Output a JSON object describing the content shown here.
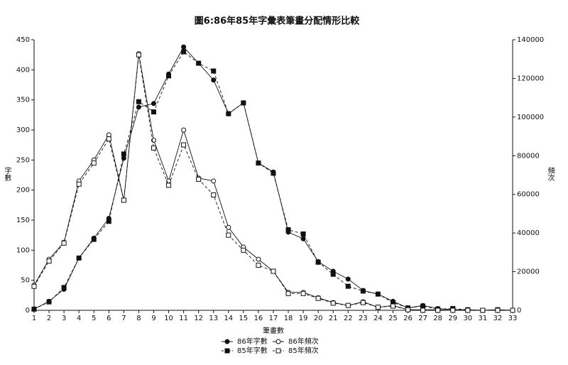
{
  "chart_data": {
    "type": "line",
    "title": "圖6:86年85年字彙表筆畫分配情形比較",
    "x_label": "筆畫數",
    "y_label": "字數",
    "y2_label": "頻次",
    "x": [
      1,
      2,
      3,
      4,
      5,
      6,
      7,
      8,
      9,
      10,
      11,
      12,
      13,
      14,
      15,
      16,
      17,
      18,
      19,
      20,
      21,
      22,
      23,
      24,
      25,
      26,
      27,
      28,
      29,
      30,
      31,
      32,
      33
    ],
    "xlim": [
      1,
      33
    ],
    "xticks": [
      1,
      2,
      3,
      4,
      5,
      6,
      7,
      8,
      9,
      10,
      11,
      12,
      13,
      14,
      15,
      16,
      17,
      18,
      19,
      20,
      21,
      22,
      23,
      24,
      25,
      26,
      27,
      28,
      29,
      30,
      31,
      32,
      33
    ],
    "ylim": [
      0,
      450
    ],
    "yticks": [
      0,
      50,
      100,
      150,
      200,
      250,
      300,
      350,
      400,
      450
    ],
    "y2lim": [
      0,
      140000
    ],
    "y2ticks": [
      0,
      20000,
      40000,
      60000,
      80000,
      100000,
      120000,
      140000
    ],
    "grid": false,
    "series": [
      {
        "name": "86年字數",
        "color": "#111111",
        "dash": "solid",
        "marker": "circle",
        "filled": true,
        "values": [
          2,
          15,
          35,
          87,
          120,
          153,
          253,
          338,
          344,
          393,
          438,
          411,
          383,
          327,
          345,
          245,
          230,
          130,
          119,
          81,
          65,
          52,
          33,
          27,
          15,
          4,
          8,
          3,
          1,
          1,
          0,
          1,
          0
        ]
      },
      {
        "name": "85年字數",
        "color": "#111111",
        "dash": "dashed",
        "marker": "square",
        "filled": true,
        "values": [
          2,
          14,
          38,
          87,
          118,
          148,
          260,
          347,
          330,
          390,
          430,
          411,
          398,
          327,
          345,
          245,
          228,
          134,
          127,
          80,
          60,
          40,
          32,
          27,
          13,
          4,
          7,
          2,
          3,
          1,
          0,
          1,
          0
        ]
      },
      {
        "name": "86年頻次",
        "color": "#111111",
        "dash": "solid",
        "marker": "circle",
        "filled": false,
        "axis": "y2",
        "values": [
          13000,
          26400,
          35200,
          66900,
          77800,
          90800,
          57000,
          132800,
          88000,
          66900,
          93300,
          68400,
          66900,
          42900,
          32700,
          26400,
          20200,
          9300,
          9300,
          6500,
          4000,
          2500,
          4400,
          1600,
          2500,
          300,
          300,
          300,
          0,
          0,
          0,
          0,
          0
        ]
      },
      {
        "name": "85年頻次",
        "color": "#111111",
        "dash": "dashed",
        "marker": "square",
        "filled": false,
        "axis": "y2",
        "values": [
          12400,
          25500,
          34800,
          65300,
          76200,
          88700,
          57000,
          132200,
          84000,
          64700,
          85600,
          67800,
          59700,
          38900,
          31100,
          23300,
          20200,
          8700,
          8700,
          6200,
          3700,
          2500,
          4000,
          1600,
          2200,
          300,
          0,
          0,
          0,
          0,
          0,
          0,
          0
        ]
      }
    ]
  }
}
